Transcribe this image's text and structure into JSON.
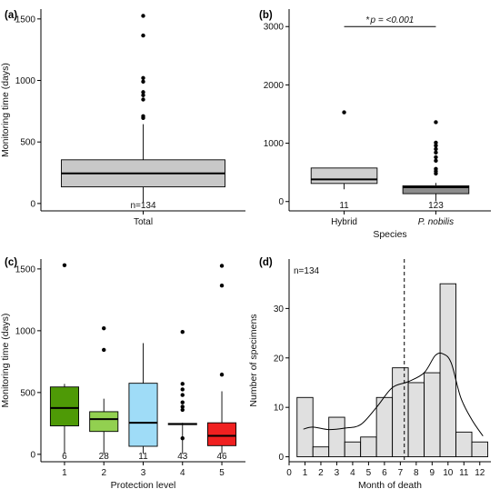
{
  "figure": {
    "background": "#ffffff"
  },
  "chart_data": [
    {
      "panel": "(a)",
      "type": "boxplot",
      "ylabel": "Monitoring time (days)",
      "xlabel": "",
      "categories": [
        "Total"
      ],
      "ylim": [
        -60,
        1580
      ],
      "yticks": [
        0,
        500,
        1000,
        1500
      ],
      "boxes": [
        {
          "category": "Total",
          "q1": 135,
          "median": 245,
          "q3": 355,
          "whisker_low": 5,
          "whisker_high": 645,
          "outliers": [
            1525,
            1365,
            1020,
            990,
            905,
            880,
            845,
            710,
            695
          ],
          "n_label": "n=134",
          "fill": "#c8c8c8"
        }
      ]
    },
    {
      "panel": "(b)",
      "type": "boxplot",
      "ylabel": "",
      "xlabel": "Species",
      "categories": [
        "Hybrid",
        "P. nobilis"
      ],
      "category_italic": [
        false,
        true
      ],
      "ylim": [
        -160,
        3300
      ],
      "yticks": [
        0,
        1000,
        2000,
        3000
      ],
      "significance": {
        "star": "*",
        "text": "p = <0.001",
        "y": 3000
      },
      "boxes": [
        {
          "category": "Hybrid",
          "q1": 310,
          "median": 380,
          "q3": 575,
          "whisker_low": 210,
          "whisker_high": 575,
          "outliers": [
            1530
          ],
          "n_label": "11",
          "fill": "#d0d0d0"
        },
        {
          "category": "P. nobilis",
          "q1": 135,
          "median": 245,
          "q3": 270,
          "whisker_low": 5,
          "whisker_high": 320,
          "outliers": [
            1360,
            1010,
            960,
            900,
            840,
            760,
            700,
            560,
            520,
            480
          ],
          "n_label": "123",
          "fill": "#8c8c8c"
        }
      ]
    },
    {
      "panel": "(c)",
      "type": "boxplot",
      "ylabel": "Monitoring time (days)",
      "xlabel": "Protection level",
      "categories": [
        "1",
        "2",
        "3",
        "4",
        "5"
      ],
      "ylim": [
        -60,
        1580
      ],
      "yticks": [
        0,
        500,
        1000,
        1500
      ],
      "boxes": [
        {
          "category": "1",
          "q1": 230,
          "median": 375,
          "q3": 545,
          "whisker_low": 5,
          "whisker_high": 570,
          "outliers": [
            1530
          ],
          "n_label": "6",
          "fill": "#4e9a06"
        },
        {
          "category": "2",
          "q1": 185,
          "median": 285,
          "q3": 345,
          "whisker_low": 5,
          "whisker_high": 450,
          "outliers": [
            1020,
            845
          ],
          "n_label": "28",
          "fill": "#92d050"
        },
        {
          "category": "3",
          "q1": 65,
          "median": 255,
          "q3": 575,
          "whisker_low": 5,
          "whisker_high": 900,
          "outliers": [],
          "n_label": "11",
          "fill": "#9fdcf7"
        },
        {
          "category": "4",
          "q1": 240,
          "median": 245,
          "q3": 250,
          "whisker_low": 5,
          "whisker_high": 255,
          "outliers": [
            990,
            570,
            525,
            480,
            420,
            385,
            360,
            130
          ],
          "n_label": "43",
          "fill": "#7a8fd6"
        },
        {
          "category": "5",
          "q1": 70,
          "median": 150,
          "q3": 255,
          "whisker_low": 5,
          "whisker_high": 510,
          "outliers": [
            1525,
            1365,
            645
          ],
          "n_label": "46",
          "fill": "#f02020"
        }
      ]
    },
    {
      "panel": "(d)",
      "type": "histogram",
      "ylabel": "Number of specimens",
      "xlabel": "Month of death",
      "annotation": "n=134",
      "bin_centers": [
        1,
        2,
        3,
        4,
        5,
        6,
        7,
        8,
        9,
        10,
        11,
        12
      ],
      "counts": [
        12,
        2,
        8,
        3,
        4,
        12,
        18,
        15,
        17,
        35,
        5,
        3
      ],
      "xlim": [
        0,
        12.7
      ],
      "xticks": [
        0,
        1,
        2,
        3,
        4,
        5,
        6,
        7,
        8,
        9,
        10,
        11,
        12
      ],
      "ylim": [
        -1,
        40
      ],
      "yticks": [
        0,
        10,
        20,
        30
      ],
      "mean_line_x": 7.25,
      "density_curve_x": [
        0.9,
        1.5,
        2.5,
        3.5,
        4.5,
        5.5,
        6.5,
        7.5,
        8.5,
        9.2,
        9.7,
        10.2,
        10.8,
        11.5,
        12.2
      ],
      "density_curve_y": [
        5.6,
        6.0,
        5.5,
        5.8,
        6.5,
        10.0,
        14.0,
        15.2,
        17.0,
        20.5,
        20.8,
        19.0,
        12.0,
        7.5,
        4.2
      ],
      "bar_fill": "#e0e0e0"
    }
  ]
}
